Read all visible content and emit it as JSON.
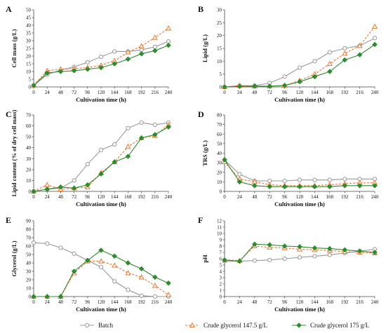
{
  "legend": {
    "entries": [
      {
        "label": "Batch",
        "color": "#999999",
        "marker": "circle-open",
        "dash": "solid"
      },
      {
        "label": "Crude glycerol 147.5 g/L",
        "color": "#e8762c",
        "marker": "triangle-open",
        "dash": "dashed"
      },
      {
        "label": "Crude glycerol 175 g/L",
        "color": "#2e8b2e",
        "marker": "diamond-filled",
        "dash": "solid"
      }
    ]
  },
  "chart_data": [
    {
      "type": "line",
      "panel": "A",
      "xlabel": "Cultivation time (h)",
      "ylabel": "Cell mass (g/L)",
      "x": [
        0,
        24,
        48,
        72,
        96,
        120,
        144,
        168,
        192,
        216,
        240
      ],
      "xlim": [
        0,
        240
      ],
      "ylim": [
        0,
        50
      ],
      "yticks": [
        0,
        5,
        10,
        15,
        20,
        25,
        30,
        35,
        40,
        45,
        50
      ],
      "series": [
        {
          "name": "Batch",
          "values": [
            1,
            8,
            11,
            13,
            16,
            19.5,
            23,
            23,
            24,
            26,
            29.5
          ]
        },
        {
          "name": "Crude glycerol 147.5 g/L",
          "values": [
            1,
            10.5,
            11.5,
            12,
            12.5,
            14,
            17,
            22.5,
            26.5,
            32,
            38
          ]
        },
        {
          "name": "Crude glycerol 175 g/L",
          "values": [
            1,
            9,
            10,
            10.5,
            11.5,
            12.5,
            15,
            18,
            21.5,
            23.5,
            27
          ]
        }
      ]
    },
    {
      "type": "line",
      "panel": "B",
      "xlabel": "Cultivation time (h)",
      "ylabel": "Lipid (g/L)",
      "x": [
        0,
        24,
        48,
        72,
        96,
        120,
        144,
        168,
        192,
        216,
        240
      ],
      "xlim": [
        0,
        240
      ],
      "ylim": [
        0,
        30
      ],
      "yticks": [
        0,
        5,
        10,
        15,
        20,
        25,
        30
      ],
      "series": [
        {
          "name": "Batch",
          "values": [
            0,
            0.5,
            0.5,
            1.5,
            4,
            7.5,
            10,
            13.5,
            15,
            16,
            19
          ]
        },
        {
          "name": "Crude glycerol 147.5 g/L",
          "values": [
            0,
            0.5,
            0.3,
            0.3,
            0.5,
            2.5,
            5,
            9,
            13,
            16,
            23.5
          ]
        },
        {
          "name": "Crude glycerol 175 g/L",
          "values": [
            0,
            0.2,
            0.3,
            0.3,
            0.6,
            2,
            4,
            6,
            10.5,
            12.5,
            16.5
          ]
        }
      ]
    },
    {
      "type": "line",
      "panel": "C",
      "xlabel": "Cultivation time (h)",
      "ylabel": "Lipid content (% of dry cell mass)",
      "x": [
        0,
        24,
        48,
        72,
        96,
        120,
        144,
        168,
        192,
        216,
        240
      ],
      "xlim": [
        0,
        240
      ],
      "ylim": [
        0,
        70
      ],
      "yticks": [
        0,
        10,
        20,
        30,
        40,
        50,
        60,
        70
      ],
      "series": [
        {
          "name": "Batch",
          "values": [
            0,
            2,
            3,
            10,
            25,
            38,
            43,
            58,
            63,
            61,
            63
          ]
        },
        {
          "name": "Crude glycerol 147.5 g/L",
          "values": [
            0,
            6,
            2,
            3,
            4,
            17,
            27,
            41,
            49,
            51,
            61
          ]
        },
        {
          "name": "Crude glycerol 175 g/L",
          "values": [
            0,
            2,
            4,
            3,
            6,
            16,
            27,
            32,
            49,
            52,
            59
          ]
        }
      ]
    },
    {
      "type": "line",
      "panel": "D",
      "xlabel": "Cultivation time (h)",
      "ylabel": "TRS (g/L)",
      "x": [
        0,
        24,
        48,
        72,
        96,
        120,
        144,
        168,
        192,
        216,
        240
      ],
      "xlim": [
        0,
        240
      ],
      "ylim": [
        0,
        80
      ],
      "yticks": [
        0,
        10,
        20,
        30,
        40,
        50,
        60,
        70,
        80
      ],
      "series": [
        {
          "name": "Batch",
          "values": [
            33,
            18,
            11,
            11,
            11,
            12,
            12,
            12,
            13,
            13,
            13
          ]
        },
        {
          "name": "Crude glycerol 147.5 g/L",
          "values": [
            31,
            13,
            10,
            7,
            6,
            6,
            6,
            7,
            8,
            9,
            9
          ]
        },
        {
          "name": "Crude glycerol 175 g/L",
          "values": [
            33,
            10,
            6,
            5,
            5,
            5,
            5,
            5,
            6,
            6,
            6
          ]
        }
      ]
    },
    {
      "type": "line",
      "panel": "E",
      "xlabel": "Cultivation time (h)",
      "ylabel": "Glycerol (g/L)",
      "x": [
        0,
        24,
        48,
        72,
        96,
        120,
        144,
        168,
        192,
        216,
        240
      ],
      "xlim": [
        0,
        240
      ],
      "ylim": [
        0,
        90
      ],
      "yticks": [
        0,
        10,
        20,
        30,
        40,
        50,
        60,
        70,
        80,
        90
      ],
      "series": [
        {
          "name": "Batch",
          "values": [
            64,
            63,
            58,
            51,
            43,
            35,
            18,
            8,
            1,
            0,
            0
          ]
        },
        {
          "name": "Crude glycerol 147.5 g/L",
          "values": [
            0,
            0,
            0,
            28,
            42,
            42,
            37,
            28,
            23,
            13,
            2
          ]
        },
        {
          "name": "Crude glycerol 175 g/L",
          "values": [
            0,
            0,
            0,
            30,
            43,
            55,
            48,
            40,
            33,
            23,
            16
          ]
        }
      ]
    },
    {
      "type": "line",
      "panel": "F",
      "xlabel": "Cultivation time (h)",
      "ylabel": "pH",
      "x": [
        0,
        24,
        48,
        72,
        96,
        120,
        144,
        168,
        192,
        216,
        240
      ],
      "xlim": [
        0,
        240
      ],
      "ylim": [
        0,
        12
      ],
      "yticks": [
        0,
        1,
        2,
        3,
        4,
        5,
        6,
        7,
        8,
        9,
        10,
        11,
        12
      ],
      "series": [
        {
          "name": "Batch",
          "values": [
            5.6,
            5.6,
            5.7,
            5.8,
            6.0,
            6.2,
            6.4,
            6.6,
            6.9,
            7.2,
            7.5
          ]
        },
        {
          "name": "Crude glycerol 147.5 g/L",
          "values": [
            5.8,
            5.7,
            8.0,
            7.8,
            7.7,
            7.5,
            7.4,
            7.3,
            7.1,
            7.0,
            6.9
          ]
        },
        {
          "name": "Crude glycerol 175 g/L",
          "values": [
            5.8,
            5.6,
            8.3,
            8.2,
            8.0,
            7.9,
            7.7,
            7.6,
            7.4,
            7.2,
            7.0
          ]
        }
      ]
    }
  ]
}
